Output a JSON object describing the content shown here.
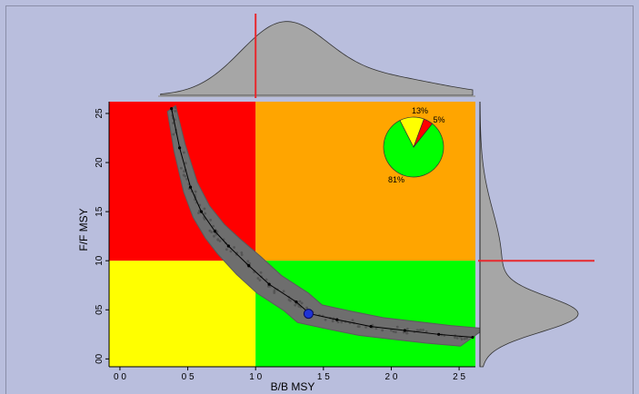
{
  "chart_data": {
    "type": "scatter",
    "title": "",
    "xlabel": "B/B MSY",
    "ylabel": "F/F MSY",
    "xlim": [
      -0.08,
      2.62
    ],
    "ylim": [
      -0.08,
      2.62
    ],
    "x_ticks": [
      0.0,
      0.5,
      1.0,
      1.5,
      2.0,
      2.5
    ],
    "x_tick_labels": [
      "0 0",
      "0 5",
      "1 0",
      "1 5",
      "2 0",
      "2 5"
    ],
    "y_ticks": [
      0.0,
      0.5,
      1.0,
      1.5,
      2.0,
      2.5
    ],
    "y_tick_labels": [
      "00",
      "05",
      "10",
      "15",
      "20",
      "25"
    ],
    "quadrants": [
      {
        "name": "overfished-and-overfishing",
        "x": [
          -0.08,
          1.0
        ],
        "y": [
          1.0,
          2.62
        ],
        "color": "#ff0000"
      },
      {
        "name": "overfishing",
        "x": [
          1.0,
          2.62
        ],
        "y": [
          1.0,
          2.62
        ],
        "color": "#ffa500"
      },
      {
        "name": "overfished",
        "x": [
          -0.08,
          1.0
        ],
        "y": [
          -0.08,
          1.0
        ],
        "color": "#ffff00"
      },
      {
        "name": "sustainable",
        "x": [
          1.0,
          2.62
        ],
        "y": [
          -0.08,
          1.0
        ],
        "color": "#00ff00"
      }
    ],
    "reference_lines": {
      "x": 1.0,
      "y": 1.0,
      "color": "#e8282d"
    },
    "trajectory": {
      "color": "#000000",
      "points": [
        {
          "x": 0.38,
          "y": 2.55
        },
        {
          "x": 0.44,
          "y": 2.15
        },
        {
          "x": 0.52,
          "y": 1.75
        },
        {
          "x": 0.6,
          "y": 1.5
        },
        {
          "x": 0.7,
          "y": 1.3
        },
        {
          "x": 0.8,
          "y": 1.15
        },
        {
          "x": 0.95,
          "y": 0.95
        },
        {
          "x": 1.1,
          "y": 0.76
        },
        {
          "x": 1.3,
          "y": 0.58
        },
        {
          "x": 1.4,
          "y": 0.46
        },
        {
          "x": 1.6,
          "y": 0.4
        },
        {
          "x": 1.85,
          "y": 0.33
        },
        {
          "x": 2.1,
          "y": 0.29
        },
        {
          "x": 2.35,
          "y": 0.25
        },
        {
          "x": 2.6,
          "y": 0.22
        }
      ]
    },
    "current_estimate": {
      "x": 1.39,
      "y": 0.46,
      "color": "#1f33d6"
    },
    "pie": {
      "values": [
        81,
        13,
        5
      ],
      "labels": [
        "81%",
        "13%",
        "5%"
      ],
      "colors": [
        "#00ff00",
        "#ffff00",
        "#ff0000"
      ]
    },
    "marginal_color": "#a6a6a6"
  }
}
